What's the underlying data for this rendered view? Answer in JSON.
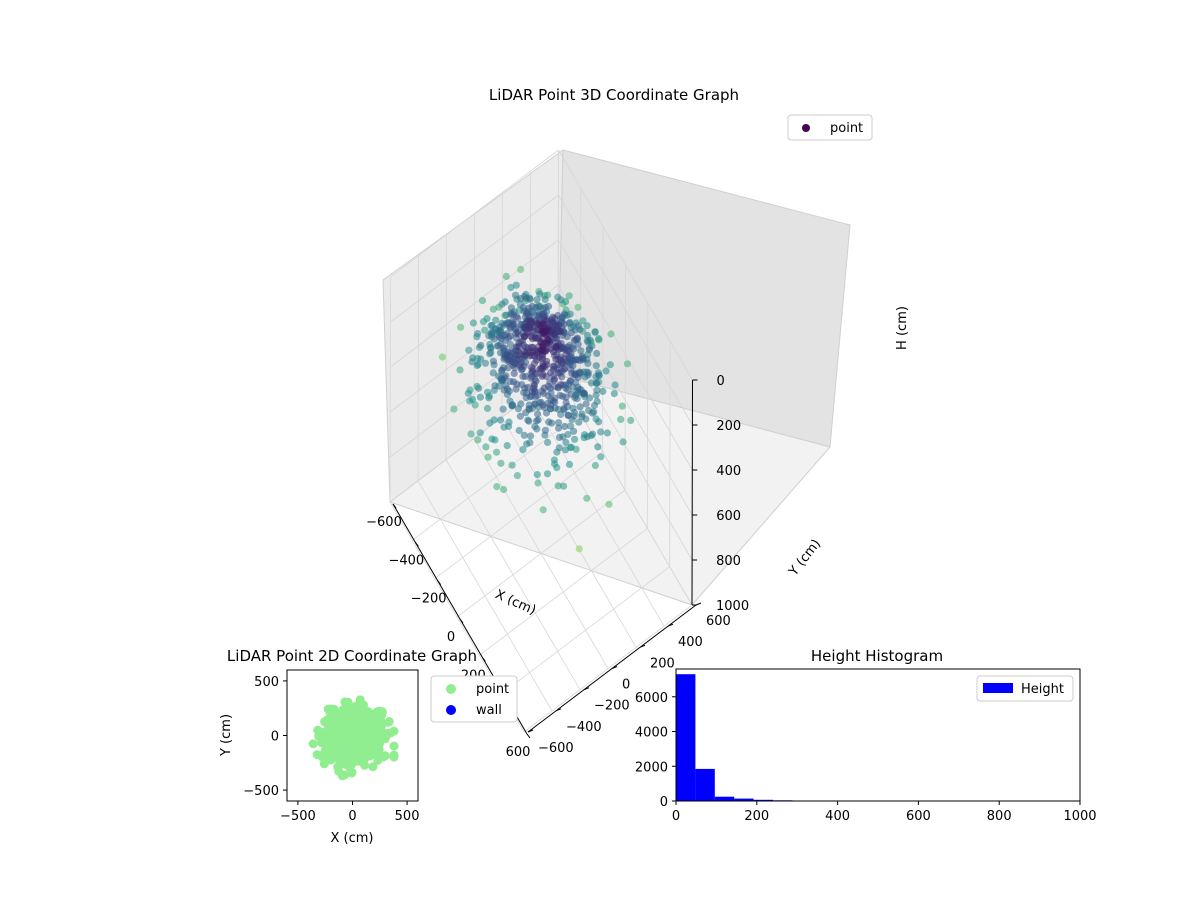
{
  "chart_data": [
    {
      "type": "scatter",
      "projection": "3d",
      "title": "LiDAR Point 3D Coordinate Graph",
      "xlabel": "X (cm)",
      "ylabel": "Y (cm)",
      "zlabel": "H (cm)",
      "xlim": [
        -600,
        600
      ],
      "ylim": [
        -600,
        600
      ],
      "zlim": [
        1000,
        0
      ],
      "xticks": [
        "−600",
        "−400",
        "−200",
        "0",
        "200",
        "400",
        "600"
      ],
      "yticks": [
        "−600",
        "−400",
        "−200",
        "0",
        "200",
        "400",
        "600"
      ],
      "zticks": [
        "0",
        "200",
        "400",
        "600",
        "800",
        "1000"
      ],
      "colormap": "viridis",
      "legend": {
        "placement": "top-right",
        "entries": [
          {
            "name": "point",
            "color": "#440154"
          }
        ]
      },
      "grid": true,
      "cluster": {
        "center_x": 0,
        "center_y": 0,
        "spread_cm": 180,
        "height_range_cm": [
          0,
          500
        ]
      }
    },
    {
      "type": "scatter",
      "title": "LiDAR Point 2D Coordinate Graph",
      "xlabel": "X (cm)",
      "ylabel": "Y (cm)",
      "xlim": [
        -600,
        600
      ],
      "ylim": [
        -600,
        600
      ],
      "xticks": [
        "−500",
        "0",
        "500"
      ],
      "yticks": [
        "500",
        "0",
        "−500"
      ],
      "legend": {
        "placement": "outside-right",
        "entries": [
          {
            "name": "point",
            "color": "#90ee90"
          },
          {
            "name": "wall",
            "color": "#0000ff"
          }
        ]
      },
      "series": [
        {
          "name": "point",
          "color": "#90ee90",
          "spread_cm": 130,
          "x_range": [
            -360,
            380
          ],
          "y_range": [
            -440,
            340
          ]
        }
      ]
    },
    {
      "type": "bar",
      "subtype": "histogram",
      "title": "Height Histogram",
      "xlim": [
        0,
        1000
      ],
      "ylim": [
        0,
        7600
      ],
      "xticks": [
        "0",
        "200",
        "400",
        "600",
        "800",
        "1000"
      ],
      "yticks": [
        "0",
        "2000",
        "4000",
        "6000"
      ],
      "legend": {
        "placement": "top-right",
        "entries": [
          {
            "name": "Height",
            "color": "#0000ff"
          }
        ]
      },
      "bin_width": 48,
      "bins": [
        {
          "x": 0,
          "count": 7300
        },
        {
          "x": 48,
          "count": 1850
        },
        {
          "x": 96,
          "count": 250
        },
        {
          "x": 144,
          "count": 140
        },
        {
          "x": 192,
          "count": 70
        },
        {
          "x": 240,
          "count": 40
        },
        {
          "x": 288,
          "count": 15
        },
        {
          "x": 336,
          "count": 8
        },
        {
          "x": 384,
          "count": 5
        },
        {
          "x": 432,
          "count": 3
        },
        {
          "x": 480,
          "count": 2
        }
      ]
    }
  ]
}
